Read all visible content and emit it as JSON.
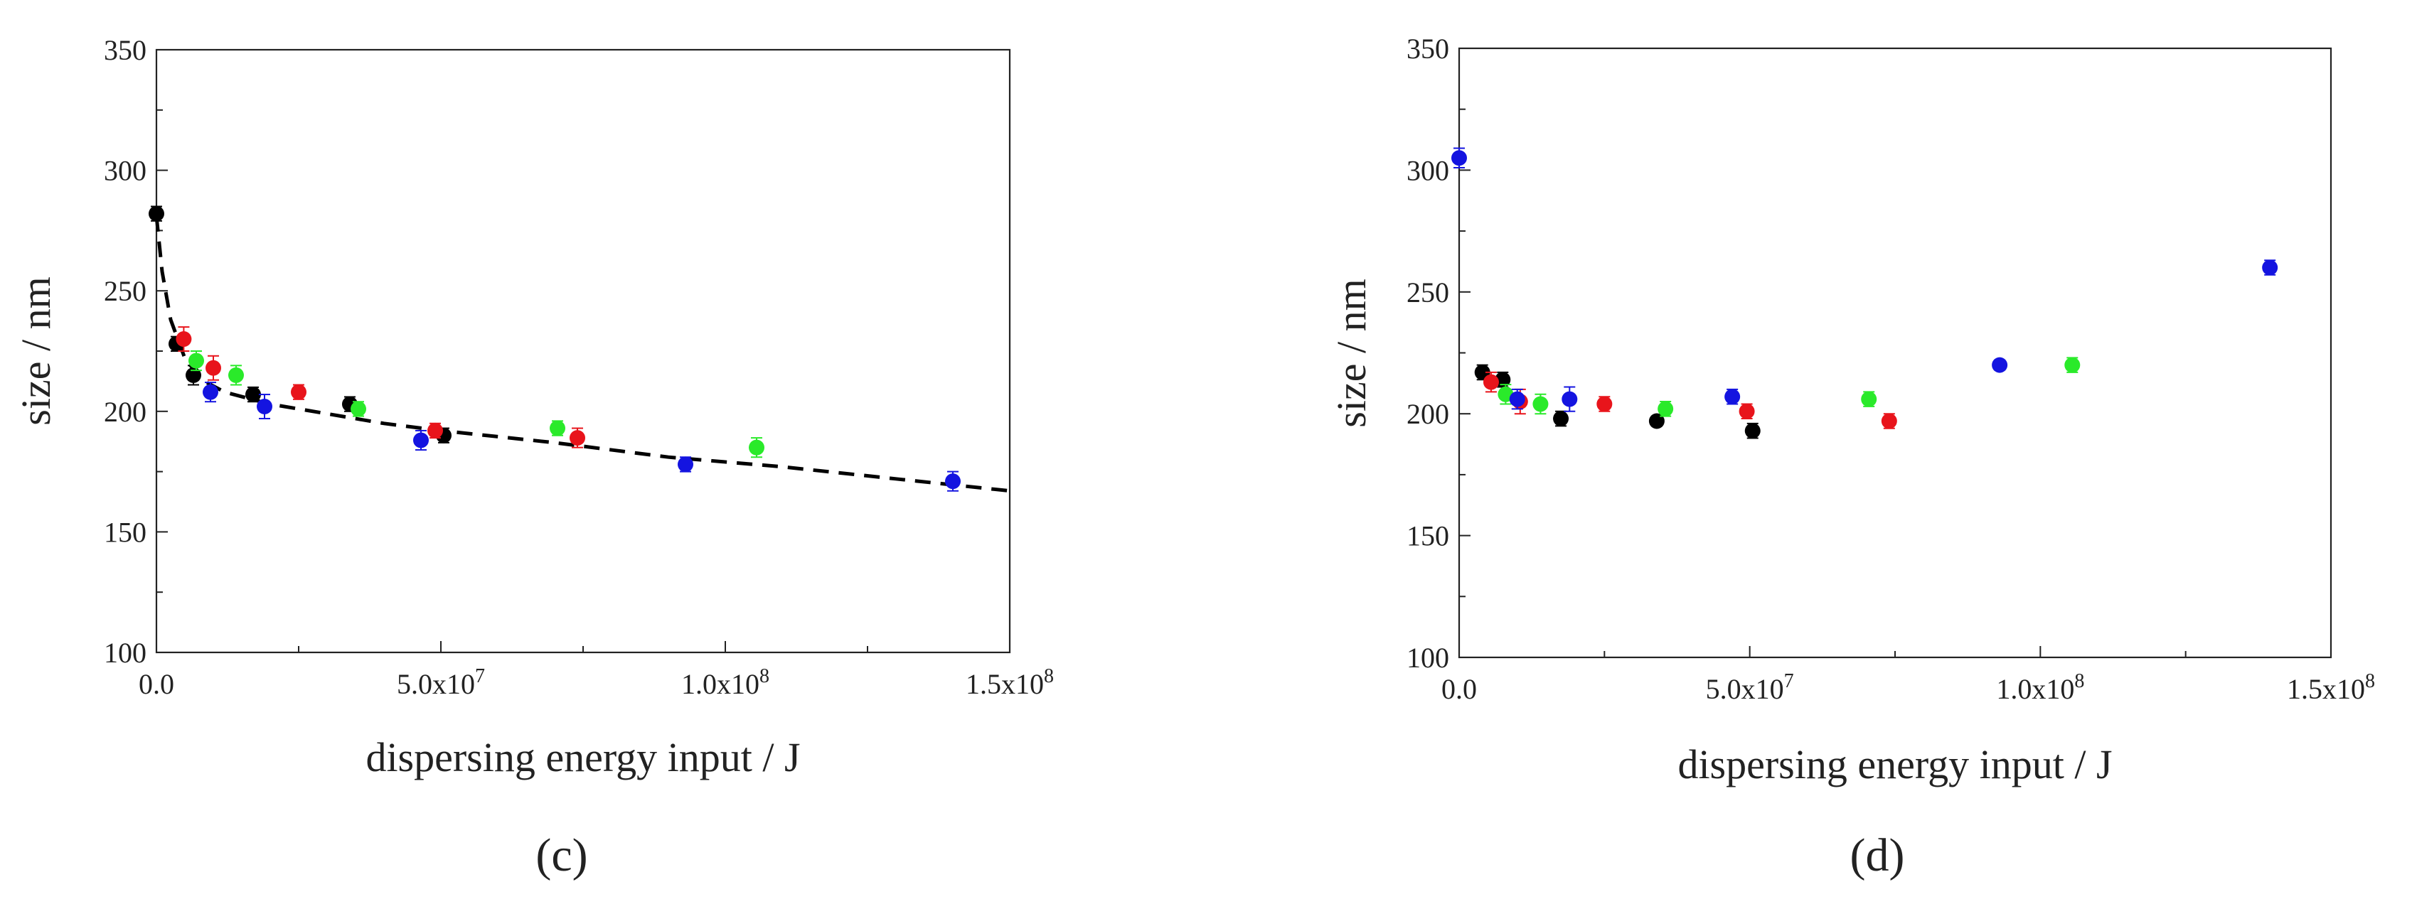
{
  "charts": [
    {
      "panel_label": "(c)",
      "xlabel": "dispersing energy input / J",
      "ylabel": "size / nm",
      "xticks": [
        {
          "value": 0,
          "label": "0.0"
        },
        {
          "value": 50000000,
          "label": "5.0x10",
          "exp": "7"
        },
        {
          "value": 100000000,
          "label": "1.0x10",
          "exp": "8"
        },
        {
          "value": 150000000,
          "label": "1.5x10",
          "exp": "8"
        }
      ],
      "yticks": [
        {
          "value": 100,
          "label": "100"
        },
        {
          "value": 150,
          "label": "150"
        },
        {
          "value": 200,
          "label": "200"
        },
        {
          "value": 250,
          "label": "250"
        },
        {
          "value": 300,
          "label": "300"
        },
        {
          "value": 350,
          "label": "350"
        }
      ]
    },
    {
      "panel_label": "(d)",
      "xlabel": "dispersing energy input / J",
      "ylabel": "size / nm",
      "xticks": [
        {
          "value": 0,
          "label": "0.0"
        },
        {
          "value": 50000000,
          "label": "5.0x10",
          "exp": "7"
        },
        {
          "value": 100000000,
          "label": "1.0x10",
          "exp": "8"
        },
        {
          "value": 150000000,
          "label": "1.5x10",
          "exp": "8"
        }
      ],
      "yticks": [
        {
          "value": 100,
          "label": "100"
        },
        {
          "value": 150,
          "label": "150"
        },
        {
          "value": 200,
          "label": "200"
        },
        {
          "value": 250,
          "label": "250"
        },
        {
          "value": 300,
          "label": "300"
        },
        {
          "value": 350,
          "label": "350"
        }
      ]
    }
  ],
  "chart_data": [
    {
      "type": "scatter",
      "panel": "(c)",
      "xlabel": "dispersing energy input / J",
      "ylabel": "size / nm",
      "xlim": [
        0,
        150000000
      ],
      "ylim": [
        100,
        350
      ],
      "grid": false,
      "series": [
        {
          "color": "#000000",
          "points": [
            {
              "x": 0,
              "y": 282,
              "err": 3
            },
            {
              "x": 3500000,
              "y": 228,
              "err": 3
            },
            {
              "x": 6500000,
              "y": 215,
              "err": 4
            },
            {
              "x": 17000000,
              "y": 207,
              "err": 3
            },
            {
              "x": 34000000,
              "y": 203,
              "err": 3
            },
            {
              "x": 50500000,
              "y": 190,
              "err": 3
            }
          ]
        },
        {
          "color": "#e8141b",
          "points": [
            {
              "x": 4800000,
              "y": 230,
              "err": 5
            },
            {
              "x": 10000000,
              "y": 218,
              "err": 5
            },
            {
              "x": 25000000,
              "y": 208,
              "err": 3
            },
            {
              "x": 49000000,
              "y": 192,
              "err": 3
            },
            {
              "x": 74000000,
              "y": 189,
              "err": 4
            }
          ]
        },
        {
          "color": "#2aea2a",
          "points": [
            {
              "x": 7000000,
              "y": 221,
              "err": 4
            },
            {
              "x": 14000000,
              "y": 215,
              "err": 4
            },
            {
              "x": 35500000,
              "y": 201,
              "err": 3
            },
            {
              "x": 70500000,
              "y": 193,
              "err": 3
            },
            {
              "x": 105500000,
              "y": 185,
              "err": 4
            }
          ]
        },
        {
          "color": "#1414e0",
          "points": [
            {
              "x": 9500000,
              "y": 208,
              "err": 4
            },
            {
              "x": 19000000,
              "y": 202,
              "err": 5
            },
            {
              "x": 46500000,
              "y": 188,
              "err": 4
            },
            {
              "x": 93000000,
              "y": 178,
              "err": 3
            },
            {
              "x": 140000000,
              "y": 171,
              "err": 4
            }
          ]
        }
      ],
      "fit_curve": {
        "style": "dashed",
        "color": "#000000",
        "points": [
          {
            "x": 0,
            "y": 281
          },
          {
            "x": 1000000,
            "y": 258
          },
          {
            "x": 2500000,
            "y": 238
          },
          {
            "x": 5000000,
            "y": 222
          },
          {
            "x": 8000000,
            "y": 213
          },
          {
            "x": 12000000,
            "y": 208
          },
          {
            "x": 20000000,
            "y": 203
          },
          {
            "x": 30000000,
            "y": 199
          },
          {
            "x": 40000000,
            "y": 195
          },
          {
            "x": 50000000,
            "y": 192
          },
          {
            "x": 70000000,
            "y": 187
          },
          {
            "x": 90000000,
            "y": 181
          },
          {
            "x": 110000000,
            "y": 177
          },
          {
            "x": 130000000,
            "y": 172
          },
          {
            "x": 150000000,
            "y": 167
          }
        ]
      }
    },
    {
      "type": "scatter",
      "panel": "(d)",
      "xlabel": "dispersing energy input / J",
      "ylabel": "size / nm",
      "xlim": [
        0,
        150000000
      ],
      "ylim": [
        100,
        350
      ],
      "grid": false,
      "series": [
        {
          "color": "#000000",
          "points": [
            {
              "x": 4000000,
              "y": 217,
              "err": 3
            },
            {
              "x": 7500000,
              "y": 214,
              "err": 3
            },
            {
              "x": 17500000,
              "y": 198,
              "err": 3
            },
            {
              "x": 34000000,
              "y": 197,
              "err": 2
            },
            {
              "x": 50500000,
              "y": 193,
              "err": 3
            }
          ]
        },
        {
          "color": "#e8141b",
          "points": [
            {
              "x": 5500000,
              "y": 213,
              "err": 4
            },
            {
              "x": 10500000,
              "y": 205,
              "err": 5
            },
            {
              "x": 25000000,
              "y": 204,
              "err": 3
            },
            {
              "x": 49500000,
              "y": 201,
              "err": 3
            },
            {
              "x": 74000000,
              "y": 197,
              "err": 3
            }
          ]
        },
        {
          "color": "#2aea2a",
          "points": [
            {
              "x": 8000000,
              "y": 208,
              "err": 4
            },
            {
              "x": 14000000,
              "y": 204,
              "err": 4
            },
            {
              "x": 35500000,
              "y": 202,
              "err": 3
            },
            {
              "x": 70500000,
              "y": 206,
              "err": 3
            },
            {
              "x": 105500000,
              "y": 220,
              "err": 3
            }
          ]
        },
        {
          "color": "#1414e0",
          "points": [
            {
              "x": 0,
              "y": 305,
              "err": 4
            },
            {
              "x": 10000000,
              "y": 206,
              "err": 4
            },
            {
              "x": 19000000,
              "y": 206,
              "err": 5
            },
            {
              "x": 47000000,
              "y": 207,
              "err": 3
            },
            {
              "x": 93000000,
              "y": 220,
              "err": 2
            },
            {
              "x": 139500000,
              "y": 260,
              "err": 3
            }
          ]
        }
      ]
    }
  ]
}
